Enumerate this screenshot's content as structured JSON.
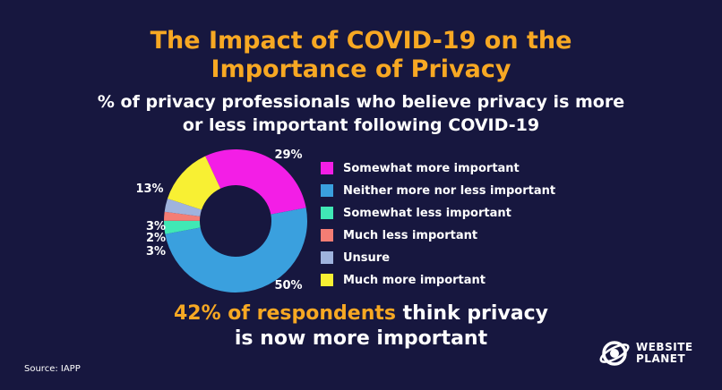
{
  "header": {
    "title_line1": "The Impact of COVID-19 on the",
    "title_line2": "Importance of Privacy",
    "subtitle_line1": "% of privacy professionals who believe privacy is more",
    "subtitle_line2": "or less important following COVID-19"
  },
  "chart_data": {
    "type": "pie",
    "variant": "donut",
    "slices": [
      {
        "label": "Somewhat more important",
        "value": 29,
        "value_label": "29%",
        "color": "#f31ee6"
      },
      {
        "label": "Neither more nor less important",
        "value": 50,
        "value_label": "50%",
        "color": "#3aa0de"
      },
      {
        "label": "Somewhat less important",
        "value": 3,
        "value_label": "3%",
        "color": "#40e8b5"
      },
      {
        "label": "Much less important",
        "value": 2,
        "value_label": "2%",
        "color": "#f47d74"
      },
      {
        "label": "Unsure",
        "value": 3,
        "value_label": "3%",
        "color": "#9fb3dd"
      },
      {
        "label": "Much more important",
        "value": 13,
        "value_label": "13%",
        "color": "#f8f033"
      }
    ],
    "legend_position": "right"
  },
  "headline": {
    "highlight": "42% of respondents",
    "rest_line1": "think privacy",
    "line2": "is now more important"
  },
  "footer": {
    "source": "Source: IAPP",
    "brand_line1": "WEBSITE",
    "brand_line2": "PLANET"
  },
  "colors": {
    "background": "#17173f",
    "accent": "#f7a823"
  }
}
